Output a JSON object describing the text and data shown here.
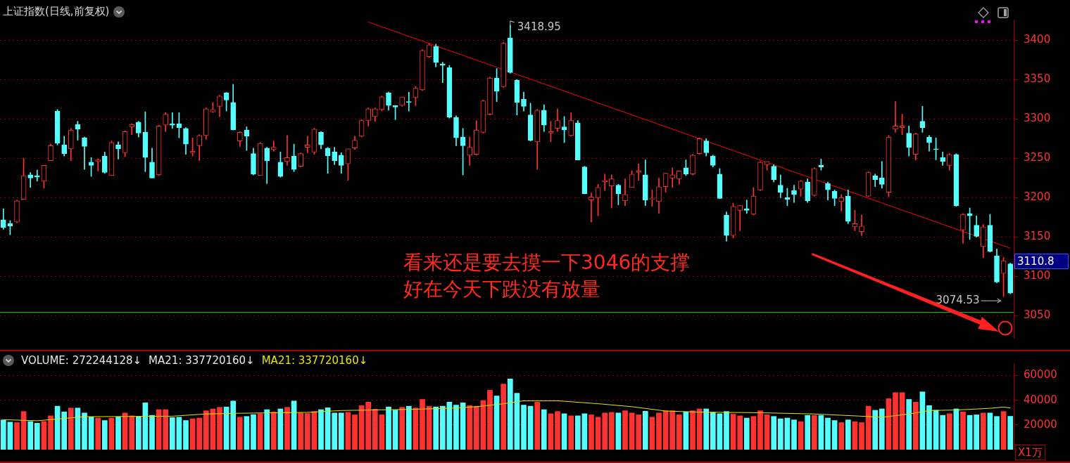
{
  "chart_data": [
    {
      "type": "candlestick",
      "title": "上证指数(日线,前复权)",
      "categories": [
        null,
        null,
        null,
        null,
        null,
        null,
        null,
        null,
        null,
        null,
        null,
        null,
        null,
        null,
        null,
        null,
        null,
        null,
        null,
        null,
        null,
        null,
        null,
        null,
        null,
        null,
        null,
        null,
        null,
        null,
        null,
        null,
        null,
        null,
        null,
        null,
        null,
        null,
        null,
        null,
        null,
        null,
        null,
        null,
        null,
        null,
        null,
        null,
        null,
        null,
        null,
        null,
        null,
        null,
        null,
        null,
        null,
        null,
        null,
        null,
        null,
        null,
        null,
        null,
        null,
        null,
        null,
        null,
        null,
        null,
        null,
        null,
        null,
        null,
        null,
        null,
        null,
        null,
        null,
        null,
        null,
        null,
        null,
        null,
        null,
        null,
        null,
        null,
        null,
        null,
        null,
        null,
        null,
        null,
        null,
        null,
        null,
        null,
        null,
        null,
        null,
        null,
        null,
        null,
        null,
        null,
        null,
        null,
        null,
        null,
        null,
        null,
        null,
        null,
        null,
        null,
        null,
        null,
        null,
        null,
        null,
        null,
        null,
        null,
        null,
        null,
        null,
        null,
        null,
        null,
        null,
        null,
        null,
        null,
        null,
        null,
        null,
        null,
        null,
        null,
        null,
        null,
        null,
        null,
        null,
        null,
        null,
        null,
        null,
        null
      ],
      "ohlc": [
        [
          3172,
          3186,
          3160,
          3162
        ],
        [
          3167,
          3171,
          3153,
          3164
        ],
        [
          3169,
          3197,
          3168,
          3196
        ],
        [
          3198,
          3250,
          3198,
          3228
        ],
        [
          3229,
          3232,
          3213,
          3225
        ],
        [
          3228,
          3235,
          3221,
          3226
        ],
        [
          3221,
          3241,
          3212,
          3241
        ],
        [
          3247,
          3268,
          3247,
          3266
        ],
        [
          3310,
          3312,
          3267,
          3269
        ],
        [
          3267,
          3278,
          3253,
          3256
        ],
        [
          3262,
          3288,
          3247,
          3286
        ],
        [
          3293,
          3297,
          3273,
          3287
        ],
        [
          3276,
          3277,
          3236,
          3265
        ],
        [
          3245,
          3251,
          3227,
          3241
        ],
        [
          3246,
          3249,
          3234,
          3248
        ],
        [
          3253,
          3258,
          3231,
          3232
        ],
        [
          3228,
          3272,
          3228,
          3270
        ],
        [
          3267,
          3271,
          3249,
          3262
        ],
        [
          3257,
          3285,
          3252,
          3284
        ],
        [
          3290,
          3294,
          3280,
          3293
        ],
        [
          3296,
          3297,
          3277,
          3282
        ],
        [
          3283,
          3309,
          3233,
          3251
        ],
        [
          3245,
          3263,
          3225,
          3225
        ],
        [
          3229,
          3292,
          3228,
          3291
        ],
        [
          3292,
          3308,
          3284,
          3306
        ],
        [
          3294,
          3308,
          3288,
          3292
        ],
        [
          3294,
          3308,
          3276,
          3289
        ],
        [
          3288,
          3289,
          3255,
          3268
        ],
        [
          3257,
          3276,
          3253,
          3259
        ],
        [
          3266,
          3280,
          3247,
          3279
        ],
        [
          3279,
          3314,
          3274,
          3313
        ],
        [
          3309,
          3321,
          3308,
          3312
        ],
        [
          3316,
          3330,
          3303,
          3329
        ],
        [
          3333,
          3334,
          3310,
          3324
        ],
        [
          3321,
          3344,
          3286,
          3286
        ],
        [
          3272,
          3284,
          3265,
          3283
        ],
        [
          3286,
          3290,
          3260,
          3278
        ],
        [
          3256,
          3263,
          3229,
          3230
        ],
        [
          3228,
          3270,
          3228,
          3269
        ],
        [
          3263,
          3264,
          3218,
          3247
        ],
        [
          3261,
          3272,
          3259,
          3264
        ],
        [
          3245,
          3258,
          3226,
          3227
        ],
        [
          3246,
          3279,
          3241,
          3251
        ],
        [
          3253,
          3268,
          3233,
          3236
        ],
        [
          3240,
          3257,
          3239,
          3256
        ],
        [
          3264,
          3278,
          3257,
          3267
        ],
        [
          3258,
          3288,
          3255,
          3287
        ],
        [
          3283,
          3284,
          3262,
          3267
        ],
        [
          3263,
          3264,
          3231,
          3253
        ],
        [
          3258,
          3264,
          3242,
          3247
        ],
        [
          3254,
          3257,
          3231,
          3241
        ],
        [
          3243,
          3262,
          3222,
          3262
        ],
        [
          3263,
          3278,
          3261,
          3273
        ],
        [
          3278,
          3299,
          3277,
          3298
        ],
        [
          3298,
          3314,
          3291,
          3313
        ],
        [
          3303,
          3314,
          3297,
          3313
        ],
        [
          3312,
          3329,
          3310,
          3328
        ],
        [
          3333,
          3334,
          3311,
          3317
        ],
        [
          3317,
          3317,
          3299,
          3315
        ],
        [
          3317,
          3328,
          3316,
          3328
        ],
        [
          3322,
          3334,
          3310,
          3321
        ],
        [
          3327,
          3341,
          3317,
          3339
        ],
        [
          3337,
          3388,
          3336,
          3387
        ],
        [
          3379,
          3396,
          3378,
          3394
        ],
        [
          3392,
          3395,
          3366,
          3372
        ],
        [
          3370,
          3372,
          3346,
          3368
        ],
        [
          3365,
          3368,
          3301,
          3302
        ],
        [
          3302,
          3304,
          3266,
          3276
        ],
        [
          3277,
          3288,
          3229,
          3266
        ],
        [
          3254,
          3277,
          3241,
          3264
        ],
        [
          3255,
          3298,
          3254,
          3286
        ],
        [
          3283,
          3324,
          3282,
          3323
        ],
        [
          3306,
          3353,
          3305,
          3352
        ],
        [
          3352,
          3364,
          3322,
          3335
        ],
        [
          3341,
          3397,
          3340,
          3396
        ],
        [
          3403,
          3418.95,
          3358,
          3359
        ],
        [
          3349,
          3350,
          3305,
          3321
        ],
        [
          3325,
          3334,
          3310,
          3316
        ],
        [
          3305,
          3320,
          3272,
          3273
        ],
        [
          3271,
          3312,
          3236,
          3311
        ],
        [
          3311,
          3318,
          3284,
          3292
        ],
        [
          3282,
          3297,
          3271,
          3284
        ],
        [
          3288,
          3313,
          3284,
          3298
        ],
        [
          3290,
          3303,
          3270,
          3286
        ],
        [
          3279,
          3308,
          3278,
          3298
        ],
        [
          3295,
          3298,
          3248,
          3248
        ],
        [
          3239,
          3240,
          3205,
          3205
        ],
        [
          3197,
          3206,
          3169,
          3201
        ],
        [
          3200,
          3217,
          3177,
          3213
        ],
        [
          3220,
          3230,
          3209,
          3222
        ],
        [
          3215,
          3229,
          3187,
          3224
        ],
        [
          3216,
          3217,
          3191,
          3205
        ],
        [
          3196,
          3224,
          3190,
          3204
        ],
        [
          3213,
          3234,
          3213,
          3230
        ],
        [
          3232,
          3243,
          3222,
          3234
        ],
        [
          3229,
          3248,
          3190,
          3197
        ],
        [
          3198,
          3210,
          3189,
          3199
        ],
        [
          3195,
          3225,
          3180,
          3214
        ],
        [
          3214,
          3231,
          3207,
          3231
        ],
        [
          3225,
          3238,
          3213,
          3229
        ],
        [
          3224,
          3234,
          3217,
          3234
        ],
        [
          3238,
          3248,
          3228,
          3230
        ],
        [
          3230,
          3255,
          3229,
          3254
        ],
        [
          3256,
          3276,
          3255,
          3275
        ],
        [
          3272,
          3275,
          3253,
          3257
        ],
        [
          3253,
          3254,
          3239,
          3241
        ],
        [
          3230,
          3237,
          3199,
          3199
        ],
        [
          3178,
          3182,
          3145,
          3152
        ],
        [
          3152,
          3193,
          3149,
          3189
        ],
        [
          3184,
          3190,
          3158,
          3190
        ],
        [
          3186,
          3197,
          3180,
          3184
        ],
        [
          3179,
          3213,
          3178,
          3202
        ],
        [
          3210,
          3246,
          3209,
          3245
        ],
        [
          3242,
          3246,
          3235,
          3246
        ],
        [
          3240,
          3242,
          3220,
          3223
        ],
        [
          3216,
          3229,
          3200,
          3207
        ],
        [
          3200,
          3212,
          3190,
          3198
        ],
        [
          3209,
          3216,
          3194,
          3204
        ],
        [
          3211,
          3222,
          3202,
          3221
        ],
        [
          3220,
          3224,
          3194,
          3196
        ],
        [
          3203,
          3238,
          3202,
          3237
        ],
        [
          3241,
          3249,
          3235,
          3239
        ],
        [
          3218,
          3220,
          3197,
          3210
        ],
        [
          3208,
          3210,
          3190,
          3199
        ],
        [
          3195,
          3204,
          3183,
          3200
        ],
        [
          3202,
          3210,
          3167,
          3170
        ],
        [
          3163,
          3184,
          3158,
          3167
        ],
        [
          3157,
          3178,
          3152,
          3164
        ],
        [
          3202,
          3233,
          3201,
          3232
        ],
        [
          3228,
          3230,
          3214,
          3223
        ],
        [
          3225,
          3246,
          3212,
          3217
        ],
        [
          3207,
          3279,
          3201,
          3277
        ],
        [
          3287,
          3322,
          3283,
          3291
        ],
        [
          3289,
          3306,
          3280,
          3291
        ],
        [
          3282,
          3291,
          3253,
          3264
        ],
        [
          3255,
          3282,
          3248,
          3281
        ],
        [
          3297,
          3316,
          3283,
          3289
        ],
        [
          3277,
          3279,
          3259,
          3270
        ],
        [
          3262,
          3276,
          3248,
          3261
        ],
        [
          3251,
          3258,
          3241,
          3246
        ],
        [
          3241,
          3256,
          3235,
          3255
        ],
        [
          3255,
          3256,
          3189,
          3190
        ],
        [
          3159,
          3180,
          3142,
          3179
        ],
        [
          3180,
          3187,
          3147,
          3177
        ],
        [
          3165,
          3177,
          3150,
          3151
        ],
        [
          3138,
          3166,
          3124,
          3163
        ],
        [
          3165,
          3179,
          3131,
          3132
        ],
        [
          3126,
          3135,
          3092,
          3093
        ],
        [
          3104,
          3124,
          3074.53,
          3120
        ],
        [
          3116,
          3117,
          3078,
          3079
        ]
      ],
      "colors": [
        "#54ffff",
        "#54ffff",
        "#ff3232",
        "#ff3232",
        "#54ffff",
        "#54ffff",
        "#ff3232",
        "#ff3232",
        "#54ffff",
        "#54ffff",
        "#ff3232",
        "#54ffff",
        "#54ffff",
        "#54ffff",
        "#ff3232",
        "#54ffff",
        "#ff3232",
        "#54ffff",
        "#ff3232",
        "#ff3232",
        "#54ffff",
        "#54ffff",
        "#54ffff",
        "#ff3232",
        "#ff3232",
        "#54ffff",
        "#54ffff",
        "#54ffff",
        "#ff3232",
        "#ff3232",
        "#ff3232",
        "#ff3232",
        "#ff3232",
        "#54ffff",
        "#54ffff",
        "#ff3232",
        "#54ffff",
        "#54ffff",
        "#ff3232",
        "#54ffff",
        "#ff3232",
        "#54ffff",
        "#ff3232",
        "#54ffff",
        "#ff3232",
        "#ff3232",
        "#ff3232",
        "#54ffff",
        "#54ffff",
        "#54ffff",
        "#54ffff",
        "#ff3232",
        "#ff3232",
        "#ff3232",
        "#ff3232",
        "#ff3232",
        "#ff3232",
        "#54ffff",
        "#54ffff",
        "#ff3232",
        "#54ffff",
        "#ff3232",
        "#ff3232",
        "#ff3232",
        "#54ffff",
        "#54ffff",
        "#54ffff",
        "#54ffff",
        "#54ffff",
        "#ff3232",
        "#ff3232",
        "#ff3232",
        "#ff3232",
        "#54ffff",
        "#ff3232",
        "#54ffff",
        "#54ffff",
        "#54ffff",
        "#54ffff",
        "#ff3232",
        "#54ffff",
        "#ff3232",
        "#ff3232",
        "#54ffff",
        "#ff3232",
        "#54ffff",
        "#54ffff",
        "#ff3232",
        "#ff3232",
        "#ff3232",
        "#ff3232",
        "#54ffff",
        "#ff3232",
        "#ff3232",
        "#ff3232",
        "#54ffff",
        "#ff3232",
        "#ff3232",
        "#ff3232",
        "#ff3232",
        "#ff3232",
        "#54ffff",
        "#ff3232",
        "#ff3232",
        "#54ffff",
        "#54ffff",
        "#54ffff",
        "#54ffff",
        "#ff3232",
        "#ff3232",
        "#54ffff",
        "#ff3232",
        "#ff3232",
        "#ff3232",
        "#54ffff",
        "#54ffff",
        "#54ffff",
        "#54ffff",
        "#ff3232",
        "#54ffff",
        "#ff3232",
        "#54ffff",
        "#54ffff",
        "#54ffff",
        "#ff3232",
        "#54ffff",
        "#ff3232",
        "#ff3232",
        "#ff3232",
        "#54ffff",
        "#54ffff",
        "#ff3232",
        "#ff3232",
        "#ff3232",
        "#54ffff",
        "#ff3232",
        "#54ffff",
        "#54ffff",
        "#54ffff",
        "#54ffff",
        "#ff3232",
        "#54ffff",
        "#ff3232",
        "#54ffff",
        "#54ffff",
        "#ff3232",
        "#54ffff",
        "#54ffff",
        "#ff3232",
        "#54ffff"
      ],
      "series": [
        {
          "type": "line",
          "color": "#ff0000",
          "values": [
            null,
            null,
            null,
            null,
            null,
            null,
            null,
            null,
            null,
            null,
            null,
            null,
            null,
            null,
            null,
            null,
            null,
            null,
            null,
            null,
            null,
            null,
            null,
            null,
            null,
            null,
            null,
            null,
            null,
            null,
            null,
            null,
            null,
            null,
            null,
            null,
            null,
            null,
            null,
            null,
            null,
            null,
            null,
            null,
            null,
            null,
            null,
            null,
            null,
            null,
            null,
            null,
            null,
            null,
            3423,
            null,
            null,
            null,
            null,
            null,
            null,
            null,
            null,
            null,
            null,
            null,
            null,
            null,
            null,
            null,
            null,
            null,
            null,
            null,
            null,
            null,
            null,
            null,
            null,
            null,
            null,
            null,
            null,
            null,
            null,
            null,
            null,
            null,
            null,
            null,
            null,
            null,
            null,
            null,
            null,
            null,
            null,
            null,
            null,
            null,
            null,
            null,
            null,
            null,
            null,
            null,
            null,
            null,
            null,
            null,
            null,
            null,
            null,
            null,
            null,
            null,
            null,
            null,
            null,
            null,
            null,
            null,
            null,
            null,
            null,
            null,
            null,
            null,
            null,
            null,
            null,
            null,
            null,
            null,
            null,
            null,
            null,
            null,
            null,
            null,
            null,
            null,
            null,
            null,
            null,
            null,
            null,
            null,
            null,
            3136
          ]
        }
      ],
      "ylim": [
        3022,
        3426
      ],
      "yticks": [
        3050,
        3100,
        3150,
        3200,
        3250,
        3300,
        3350,
        3400
      ],
      "grid": "y",
      "ref_lines": [
        {
          "axis": "y",
          "value": 3055,
          "color": "#00c800"
        }
      ],
      "annotations": [
        "看来还是要去摸一下3046的支撑",
        "好在今天下跌没有放量",
        "3418.95",
        "3074.53",
        "3110.8"
      ]
    },
    {
      "type": "bar",
      "title": "VOLUME: 272244128↓",
      "ylabel": "X1万",
      "categories": [
        null,
        null,
        null,
        null,
        null,
        null,
        null,
        null,
        null,
        null,
        null,
        null,
        null,
        null,
        null,
        null,
        null,
        null,
        null,
        null,
        null,
        null,
        null,
        null,
        null,
        null,
        null,
        null,
        null,
        null,
        null,
        null,
        null,
        null,
        null,
        null,
        null,
        null,
        null,
        null,
        null,
        null,
        null,
        null,
        null,
        null,
        null,
        null,
        null,
        null,
        null,
        null,
        null,
        null,
        null,
        null,
        null,
        null,
        null,
        null,
        null,
        null,
        null,
        null,
        null,
        null,
        null,
        null,
        null,
        null,
        null,
        null,
        null,
        null,
        null,
        null,
        null,
        null,
        null,
        null,
        null,
        null,
        null,
        null,
        null,
        null,
        null,
        null,
        null,
        null,
        null,
        null,
        null,
        null,
        null,
        null,
        null,
        null,
        null,
        null,
        null,
        null,
        null,
        null,
        null,
        null,
        null,
        null,
        null,
        null,
        null,
        null,
        null,
        null,
        null,
        null,
        null,
        null,
        null,
        null,
        null,
        null,
        null,
        null,
        null,
        null,
        null,
        null,
        null,
        null,
        null,
        null,
        null,
        null,
        null,
        null,
        null,
        null,
        null,
        null,
        null,
        null,
        null,
        null,
        null,
        null,
        null,
        null,
        null,
        null
      ],
      "series": [
        {
          "type": "bar",
          "colors": [
            "#54ffff",
            "#54ffff",
            "#ff3232",
            "#ff3232",
            "#54ffff",
            "#54ffff",
            "#ff3232",
            "#ff3232",
            "#54ffff",
            "#54ffff",
            "#ff3232",
            "#54ffff",
            "#54ffff",
            "#54ffff",
            "#ff3232",
            "#54ffff",
            "#ff3232",
            "#54ffff",
            "#ff3232",
            "#ff3232",
            "#54ffff",
            "#54ffff",
            "#54ffff",
            "#ff3232",
            "#ff3232",
            "#54ffff",
            "#54ffff",
            "#54ffff",
            "#ff3232",
            "#ff3232",
            "#ff3232",
            "#ff3232",
            "#ff3232",
            "#54ffff",
            "#54ffff",
            "#ff3232",
            "#54ffff",
            "#54ffff",
            "#ff3232",
            "#54ffff",
            "#ff3232",
            "#54ffff",
            "#ff3232",
            "#54ffff",
            "#ff3232",
            "#ff3232",
            "#ff3232",
            "#54ffff",
            "#54ffff",
            "#54ffff",
            "#54ffff",
            "#ff3232",
            "#ff3232",
            "#ff3232",
            "#ff3232",
            "#ff3232",
            "#ff3232",
            "#54ffff",
            "#54ffff",
            "#ff3232",
            "#54ffff",
            "#ff3232",
            "#ff3232",
            "#ff3232",
            "#54ffff",
            "#54ffff",
            "#54ffff",
            "#54ffff",
            "#54ffff",
            "#ff3232",
            "#ff3232",
            "#ff3232",
            "#ff3232",
            "#54ffff",
            "#ff3232",
            "#54ffff",
            "#54ffff",
            "#54ffff",
            "#54ffff",
            "#ff3232",
            "#54ffff",
            "#ff3232",
            "#ff3232",
            "#54ffff",
            "#ff3232",
            "#54ffff",
            "#54ffff",
            "#ff3232",
            "#ff3232",
            "#ff3232",
            "#ff3232",
            "#54ffff",
            "#ff3232",
            "#ff3232",
            "#ff3232",
            "#54ffff",
            "#ff3232",
            "#ff3232",
            "#ff3232",
            "#ff3232",
            "#ff3232",
            "#54ffff",
            "#ff3232",
            "#ff3232",
            "#54ffff",
            "#54ffff",
            "#54ffff",
            "#54ffff",
            "#ff3232",
            "#ff3232",
            "#54ffff",
            "#ff3232",
            "#ff3232",
            "#ff3232",
            "#54ffff",
            "#54ffff",
            "#54ffff",
            "#54ffff",
            "#ff3232",
            "#54ffff",
            "#ff3232",
            "#54ffff",
            "#54ffff",
            "#54ffff",
            "#ff3232",
            "#54ffff",
            "#ff3232",
            "#ff3232",
            "#ff3232",
            "#54ffff",
            "#54ffff",
            "#ff3232",
            "#ff3232",
            "#ff3232",
            "#54ffff",
            "#ff3232",
            "#54ffff",
            "#54ffff",
            "#54ffff",
            "#54ffff",
            "#ff3232",
            "#54ffff",
            "#ff3232",
            "#54ffff",
            "#54ffff",
            "#ff3232",
            "#54ffff",
            "#54ffff",
            "#ff3232",
            "#54ffff"
          ],
          "values": [
            24300,
            22500,
            22100,
            31100,
            23000,
            21600,
            23000,
            27600,
            35400,
            30800,
            33900,
            33900,
            29900,
            26700,
            25800,
            23800,
            25800,
            26700,
            29900,
            27600,
            27100,
            38100,
            28000,
            32600,
            32600,
            26200,
            26500,
            23800,
            25200,
            25800,
            31700,
            33200,
            34500,
            34800,
            39600,
            26500,
            27100,
            28600,
            29300,
            32600,
            30800,
            33200,
            34500,
            39600,
            29900,
            29500,
            31100,
            32600,
            34100,
            29900,
            29900,
            30400,
            28400,
            35900,
            38700,
            33000,
            28400,
            34800,
            32300,
            34500,
            35400,
            33900,
            40900,
            35400,
            34800,
            35400,
            38700,
            36300,
            38100,
            35900,
            35400,
            40000,
            48300,
            43700,
            53300,
            57500,
            45900,
            36300,
            35400,
            38700,
            32600,
            29300,
            31100,
            29300,
            27600,
            27600,
            29300,
            28400,
            26500,
            29900,
            30400,
            29900,
            31700,
            29900,
            28400,
            31300,
            26500,
            29900,
            31700,
            31700,
            28400,
            30800,
            31700,
            33200,
            33200,
            30400,
            29300,
            31100,
            28900,
            27600,
            25800,
            27100,
            31700,
            28400,
            27100,
            25200,
            25800,
            24300,
            22900,
            28000,
            28000,
            28000,
            25800,
            23800,
            22100,
            24300,
            22900,
            22100,
            35400,
            32100,
            33200,
            41500,
            46400,
            46400,
            40900,
            38700,
            47000,
            35900,
            32100,
            28000,
            29300,
            33200,
            30800,
            28000,
            28400,
            29900,
            29900,
            27100,
            31100,
            27200
          ]
        },
        {
          "type": "line",
          "name": "MA21: 337720160↓",
          "color": "#e6e600",
          "values": [
            24300,
            null,
            null,
            null,
            null,
            23400,
            null,
            null,
            null,
            null,
            null,
            null,
            26700,
            null,
            null,
            null,
            null,
            null,
            null,
            null,
            null,
            null,
            null,
            null,
            null,
            27100,
            null,
            null,
            null,
            null,
            28900,
            null,
            null,
            null,
            null,
            29500,
            null,
            null,
            null,
            null,
            null,
            null,
            null,
            null,
            null,
            30200,
            null,
            null,
            null,
            null,
            31700,
            null,
            null,
            null,
            null,
            null,
            null,
            null,
            null,
            null,
            32600,
            null,
            null,
            null,
            null,
            null,
            33500,
            null,
            null,
            null,
            34800,
            null,
            null,
            null,
            37200,
            null,
            null,
            39600,
            null,
            null,
            null,
            null,
            39600,
            null,
            null,
            null,
            null,
            null,
            37200,
            null,
            null,
            null,
            null,
            34800,
            null,
            null,
            null,
            null,
            31300,
            null,
            null,
            null,
            null,
            30400,
            null,
            null,
            null,
            null,
            null,
            null,
            null,
            null,
            29900,
            null,
            null,
            null,
            null,
            null,
            null,
            null,
            28900,
            null,
            null,
            null,
            null,
            null,
            null,
            27100,
            null,
            null,
            26200,
            null,
            null,
            null,
            28900,
            null,
            null,
            31700,
            null,
            null,
            null,
            32100,
            null,
            null,
            null,
            null,
            33500,
            null,
            34500,
            33800
          ]
        }
      ],
      "ylim": [
        0,
        70000
      ],
      "yticks": [
        20000,
        40000,
        60000
      ],
      "grid": "y",
      "legend": "top left",
      "annotations": [
        "MA21: 337720160↓"
      ]
    }
  ]
}
